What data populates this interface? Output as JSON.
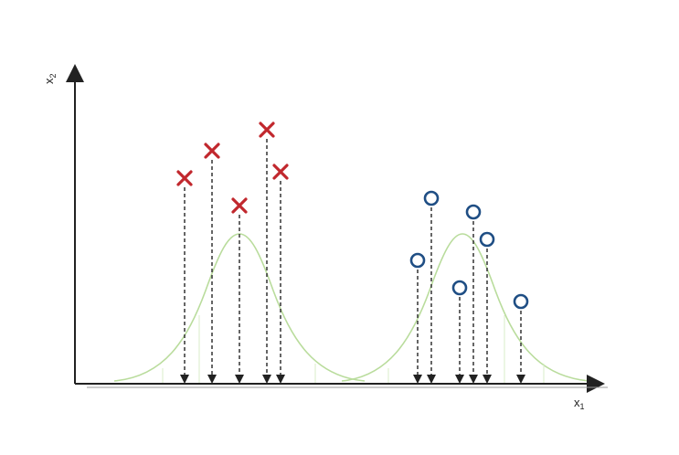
{
  "axes": {
    "x_label": "x",
    "x_subscript": "1",
    "y_label": "x",
    "y_subscript": "2"
  },
  "colors": {
    "axis": "#222222",
    "projection_line": "#333333",
    "gaussian": "#b9dc9c",
    "class_cross": "#c1272d",
    "class_circle": "#1f4e84"
  },
  "icons": {
    "cross_marker": "x-marker-icon",
    "circle_marker": "circle-marker-icon",
    "projection_arrow": "down-arrow-icon"
  }
}
